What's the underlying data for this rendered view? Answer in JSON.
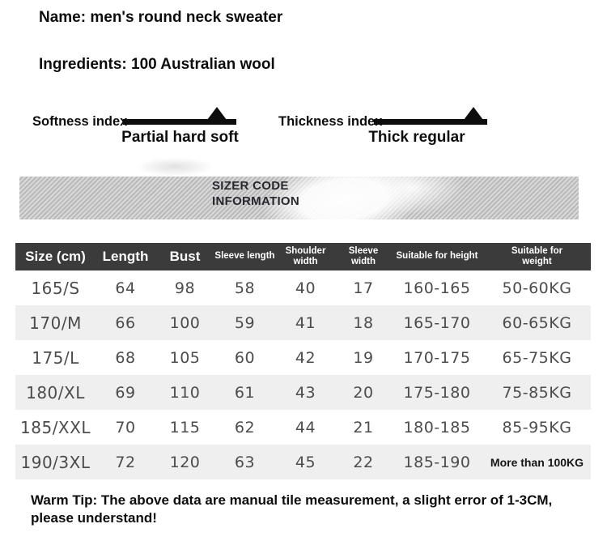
{
  "product": {
    "name_line": "Name: men's round neck sweater",
    "ingredients_line": "Ingredients: 100 Australian wool"
  },
  "indices": {
    "softness": {
      "label": "Softness index",
      "scale_label": "Partial hard soft",
      "marker_position": "right-of-center"
    },
    "thickness": {
      "label": "Thickness index",
      "scale_label": "Thick regular",
      "marker_position": "right-of-center"
    }
  },
  "banner": {
    "title": "SIZER CODE\nINFORMATION"
  },
  "size_table": {
    "columns": [
      "Size (cm)",
      "Length",
      "Bust",
      "Sleeve length",
      "Shoulder\nwidth",
      "Sleeve\nwidth",
      "Suitable for height",
      "Suitable for\nweight"
    ],
    "rows": [
      [
        "165/S",
        "64",
        "98",
        "58",
        "40",
        "17",
        "160-165",
        "50-60KG"
      ],
      [
        "170/M",
        "66",
        "100",
        "59",
        "41",
        "18",
        "165-170",
        "60-65KG"
      ],
      [
        "175/L",
        "68",
        "105",
        "60",
        "42",
        "19",
        "170-175",
        "65-75KG"
      ],
      [
        "180/XL",
        "69",
        "110",
        "61",
        "43",
        "20",
        "175-180",
        "75-85KG"
      ],
      [
        "185/XXL",
        "70",
        "115",
        "62",
        "44",
        "21",
        "180-185",
        "85-95KG"
      ],
      [
        "190/3XL",
        "72",
        "120",
        "63",
        "45",
        "22",
        "185-190",
        "More than 100KG"
      ]
    ]
  },
  "warm_tip": "Warm Tip: The above data are manual tile measurement, a slight error of 1-3CM, please understand!",
  "colors": {
    "table_header_bg": "#3b3b3b",
    "table_header_text": "#ffffff",
    "row_alt_bg": "#efeff0",
    "data_text": "#4c4c4c",
    "heading_text": "#0d0d0d",
    "banner_stripe_dark": "#b9b9b9",
    "banner_stripe_light": "#d9d9d9",
    "banner_text": "#27272e"
  }
}
